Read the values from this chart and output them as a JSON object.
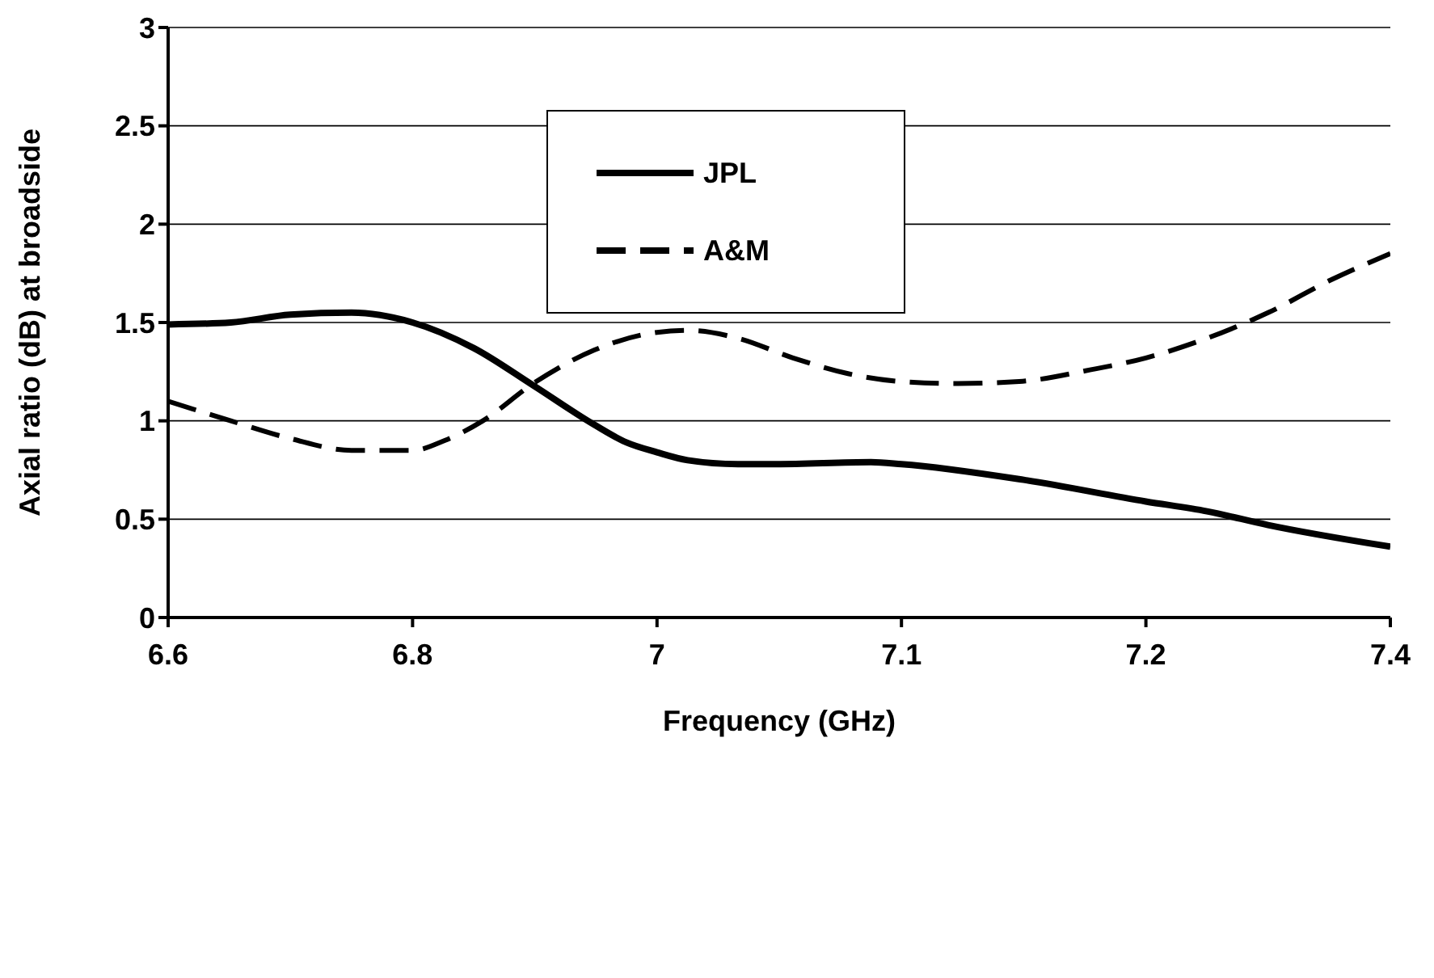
{
  "chart_data": {
    "type": "line",
    "xlabel": "Frequency (GHz)",
    "ylabel": "Axial ratio (dB) at broadside",
    "xlim": [
      6.6,
      7.4
    ],
    "xticks": [
      6.6,
      {
        "value": 6.76,
        "label": "6.8"
      },
      {
        "value": 6.92,
        "label": "7"
      },
      {
        "value": 7.08,
        "label": "7.1"
      },
      {
        "value": 7.24,
        "label": "7.2"
      },
      7.4
    ],
    "ylim": [
      0,
      3
    ],
    "yticks": [
      0,
      0.5,
      1,
      1.5,
      2,
      2.5,
      3
    ],
    "grid": "y",
    "legend": "top",
    "marker": "none",
    "series": [
      {
        "name": "JPL",
        "color": "#000000",
        "line_style": "solid",
        "x": [
          6.6,
          6.641,
          6.68,
          6.72,
          6.76,
          6.8,
          6.839,
          6.879,
          6.9,
          6.92,
          6.94,
          6.973,
          6.998,
          7.06,
          7.08,
          7.16,
          7.24,
          7.28,
          7.32,
          7.4
        ],
        "values": [
          1.49,
          1.5,
          1.54,
          1.55,
          1.5,
          1.37,
          1.18,
          0.98,
          0.89,
          0.84,
          0.8,
          0.78,
          0.78,
          0.79,
          0.78,
          0.7,
          0.59,
          0.54,
          0.47,
          0.36
        ]
      },
      {
        "name": "A&M",
        "color": "#000000",
        "line_style": "dashed",
        "x": [
          6.6,
          6.641,
          6.68,
          6.72,
          6.76,
          6.781,
          6.806,
          6.839,
          6.879,
          6.92,
          6.94,
          6.973,
          7.009,
          7.045,
          7.08,
          7.117,
          7.157,
          7.204,
          7.24,
          7.28,
          7.32,
          7.362,
          7.4
        ],
        "values": [
          1.1,
          1.0,
          0.91,
          0.85,
          0.85,
          0.9,
          1.0,
          1.19,
          1.36,
          1.45,
          1.46,
          1.42,
          1.32,
          1.24,
          1.2,
          1.19,
          1.2,
          1.26,
          1.32,
          1.42,
          1.55,
          1.72,
          1.85
        ]
      }
    ]
  }
}
